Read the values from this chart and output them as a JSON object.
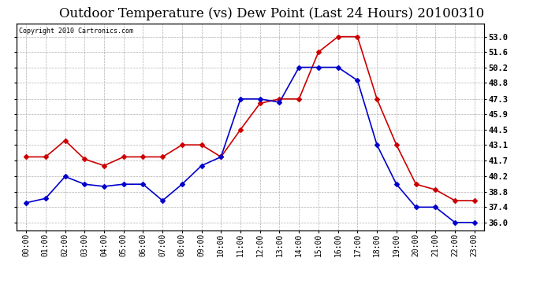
{
  "title": "Outdoor Temperature (vs) Dew Point (Last 24 Hours) 20100310",
  "copyright_text": "Copyright 2010 Cartronics.com",
  "hours": [
    "00:00",
    "01:00",
    "02:00",
    "03:00",
    "04:00",
    "05:00",
    "06:00",
    "07:00",
    "08:00",
    "09:00",
    "10:00",
    "11:00",
    "12:00",
    "13:00",
    "14:00",
    "15:00",
    "16:00",
    "17:00",
    "18:00",
    "19:00",
    "20:00",
    "21:00",
    "22:00",
    "23:00"
  ],
  "temp_red": [
    42.0,
    42.0,
    43.5,
    41.8,
    41.2,
    42.0,
    42.0,
    42.0,
    43.1,
    43.1,
    42.0,
    44.5,
    46.9,
    47.3,
    47.3,
    51.6,
    53.0,
    53.0,
    47.3,
    43.1,
    39.5,
    39.0,
    38.0,
    38.0
  ],
  "temp_blue": [
    37.8,
    38.2,
    40.2,
    39.5,
    39.3,
    39.5,
    39.5,
    38.0,
    39.5,
    41.2,
    42.0,
    47.3,
    47.3,
    47.0,
    50.2,
    50.2,
    50.2,
    49.0,
    43.1,
    39.5,
    37.4,
    37.4,
    36.0,
    36.0
  ],
  "ylim_min": 35.3,
  "ylim_max": 54.2,
  "yticks": [
    36.0,
    37.4,
    38.8,
    40.2,
    41.7,
    43.1,
    44.5,
    45.9,
    47.3,
    48.8,
    50.2,
    51.6,
    53.0
  ],
  "red_color": "#cc0000",
  "blue_color": "#0000cc",
  "bg_color": "#ffffff",
  "plot_bg_color": "#ffffff",
  "grid_color": "#b0b0b0",
  "title_fontsize": 12,
  "copyright_fontsize": 6,
  "marker": "D",
  "marker_size": 3,
  "line_width": 1.2
}
